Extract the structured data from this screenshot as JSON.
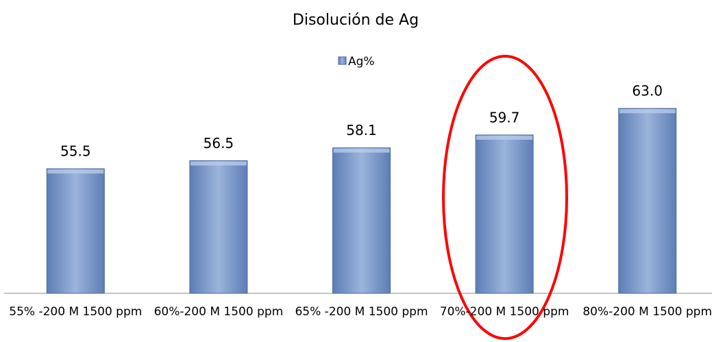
{
  "chart_data": {
    "type": "bar",
    "title": "Disolución de Ag",
    "categories": [
      "55% -200 M 1500 ppm",
      "60%-200 M 1500 ppm",
      "65% -200 M 1500 ppm",
      "70%-200 M 1500 ppm",
      "80%-200 M 1500 ppm"
    ],
    "series": [
      {
        "name": "Ag%",
        "color": "#7f9bcb",
        "values": [
          55.5,
          56.5,
          58.1,
          59.7,
          63.0
        ],
        "value_labels": [
          "55.5",
          "56.5",
          "58.1",
          "59.7",
          "63.0"
        ]
      }
    ],
    "ylim": [
      40,
      66
    ],
    "legend": "top"
  }
}
